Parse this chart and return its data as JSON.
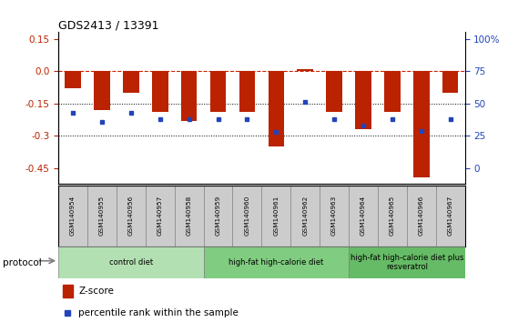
{
  "title": "GDS2413 / 13391",
  "samples": [
    "GSM140954",
    "GSM140955",
    "GSM140956",
    "GSM140957",
    "GSM140958",
    "GSM140959",
    "GSM140960",
    "GSM140961",
    "GSM140962",
    "GSM140963",
    "GSM140964",
    "GSM140965",
    "GSM140966",
    "GSM140967"
  ],
  "z_scores": [
    -0.08,
    -0.18,
    -0.1,
    -0.19,
    -0.23,
    -0.19,
    -0.19,
    -0.35,
    0.01,
    -0.19,
    -0.27,
    -0.19,
    -0.49,
    -0.1
  ],
  "percentile_ranks": [
    0.43,
    0.36,
    0.43,
    0.38,
    0.38,
    0.38,
    0.38,
    0.28,
    0.51,
    0.38,
    0.33,
    0.38,
    0.29,
    0.38
  ],
  "groups": [
    {
      "label": "control diet",
      "start": 0,
      "end": 5,
      "color": "#b2e0b2"
    },
    {
      "label": "high-fat high-calorie diet",
      "start": 5,
      "end": 10,
      "color": "#80cc80"
    },
    {
      "label": "high-fat high-calorie diet plus\nresveratrol",
      "start": 10,
      "end": 14,
      "color": "#66bb66"
    }
  ],
  "ylim": [
    -0.52,
    0.18
  ],
  "yticks_left": [
    0.15,
    0.0,
    -0.15,
    -0.3,
    -0.45
  ],
  "yticks_right_vals": [
    1.0,
    0.75,
    0.5,
    0.25,
    0.0
  ],
  "yticks_right_labels": [
    "100%",
    "75",
    "50",
    "25",
    "0"
  ],
  "bar_color": "#bb2200",
  "dot_color": "#2244bb",
  "hline_color": "#cc2200",
  "bg_color": "#ffffff",
  "sample_bg_color": "#cccccc",
  "sample_border_color": "#888888",
  "protocol_label": "protocol",
  "legend_zscore": "Z-score",
  "legend_pct": "percentile rank within the sample",
  "bar_width": 0.55
}
